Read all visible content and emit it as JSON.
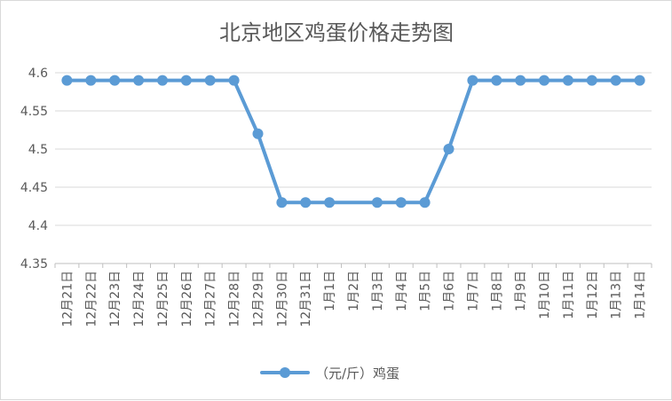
{
  "chart_data": {
    "type": "line",
    "title": "北京地区鸡蛋价格走势图",
    "xlabel": "",
    "ylabel": "",
    "categories": [
      "12月21日",
      "12月22日",
      "12月23日",
      "12月24日",
      "12月25日",
      "12月26日",
      "12月27日",
      "12月28日",
      "12月29日",
      "12月30日",
      "12月31日",
      "1月1日",
      "1月2日",
      "1月3日",
      "1月4日",
      "1月5日",
      "1月6日",
      "1月7日",
      "1月8日",
      "1月9日",
      "1月10日",
      "1月11日",
      "1月12日",
      "1月13日",
      "1月14日"
    ],
    "series": [
      {
        "name": "（元/斤）鸡蛋",
        "color": "#5b9bd5",
        "values": [
          4.59,
          4.59,
          4.59,
          4.59,
          4.59,
          4.59,
          4.59,
          4.59,
          4.52,
          4.43,
          4.43,
          4.43,
          null,
          4.43,
          4.43,
          4.43,
          4.5,
          4.59,
          4.59,
          4.59,
          4.59,
          4.59,
          4.59,
          4.59,
          4.59
        ]
      }
    ],
    "yticks": [
      "4.35",
      "4.4",
      "4.45",
      "4.5",
      "4.55",
      "4.6"
    ],
    "ylim": [
      4.35,
      4.6
    ],
    "grid": true,
    "legend": "bottom"
  }
}
